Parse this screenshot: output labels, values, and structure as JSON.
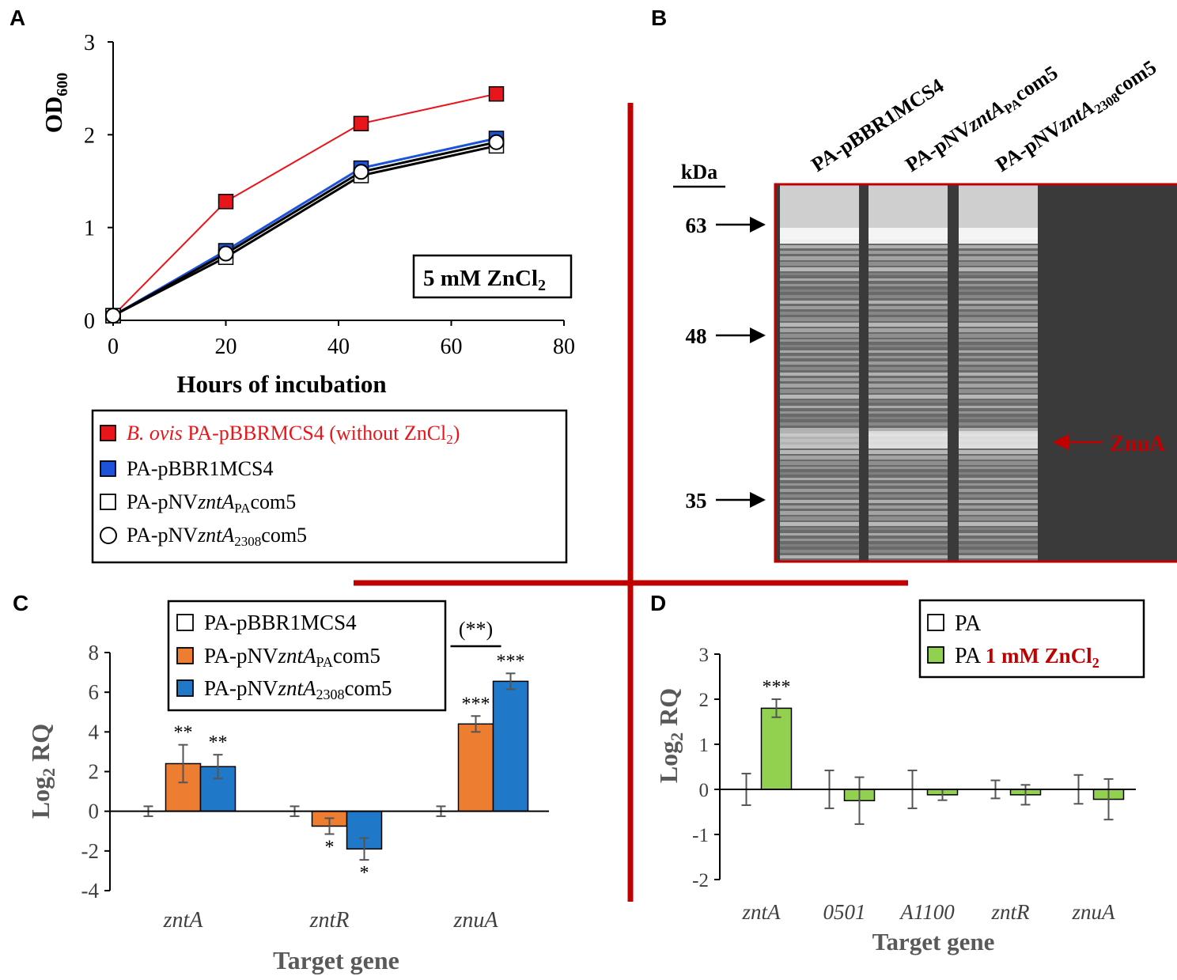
{
  "panels": {
    "a": "A",
    "b": "B",
    "c": "C",
    "d": "D"
  },
  "colors": {
    "red_series": "#e8161b",
    "blue_series": "#1c53d8",
    "orange_bar": "#ed7d31",
    "blue_bar": "#1f78c8",
    "green_bar": "#92d050",
    "divider": "#c00000",
    "error_bar": "#7f7f7f"
  },
  "chart_data": [
    {
      "id": "A",
      "type": "line",
      "xlabel": "Hours of incubation",
      "ylabel_main": "OD",
      "ylabel_sub": "600",
      "xlim": [
        0,
        80
      ],
      "ylim": [
        0,
        3
      ],
      "xticks": [
        "0",
        "20",
        "40",
        "60",
        "80"
      ],
      "yticks": [
        "0",
        "1",
        "2",
        "3"
      ],
      "condition_box": {
        "text": "5 mM ZnCl",
        "sub": "2"
      },
      "x": [
        0,
        20,
        44,
        68
      ],
      "series": [
        {
          "name": "B. ovis PA-pBBRMCS4 (without ZnCl2)",
          "marker": "square",
          "values": [
            0.05,
            1.28,
            2.12,
            2.44
          ]
        },
        {
          "name": "PA-pBBR1MCS4",
          "marker": "square",
          "values": [
            0.05,
            0.75,
            1.64,
            1.96
          ]
        },
        {
          "name": "PA-pNVzntA_PAcom5",
          "marker": "square-open",
          "values": [
            0.05,
            0.68,
            1.56,
            1.88
          ]
        },
        {
          "name": "PA-pNVzntA2308com5",
          "marker": "circle-open",
          "values": [
            0.05,
            0.72,
            1.6,
            1.92
          ]
        }
      ],
      "legend": [
        {
          "italic": "B. ovis",
          "text": " PA-pBBRMCS4 (without ZnCl",
          "sub": "2",
          "tail": ")"
        },
        {
          "pre": "PA-pBBR1MCS4",
          "ital": "",
          "sub": "",
          "post": ""
        },
        {
          "pre": "PA-pNV",
          "ital": "zntA",
          "sub": "PA",
          "post": "com5"
        },
        {
          "pre": "PA-pNV",
          "ital": "zntA",
          "sub": "2308",
          "post": "com5"
        }
      ]
    },
    {
      "id": "B",
      "type": "gel",
      "unit_label": "kDa",
      "lanes": [
        {
          "pre": "PA-pBBR1MCS4",
          "ital": "",
          "sub": "",
          "post": ""
        },
        {
          "pre": "PA-pNV",
          "ital": "zntA",
          "sub": "PA",
          "post": "com5"
        },
        {
          "pre": "PA-pNV",
          "ital": "zntA",
          "sub": "2308",
          "post": "com5"
        }
      ],
      "markers": [
        "63",
        "48",
        "35"
      ],
      "band_label": "ZnuA"
    },
    {
      "id": "C",
      "type": "bar",
      "xlabel": "Target gene",
      "ylabel_main": "Log",
      "ylabel_sub": "2",
      "ylabel_tail": " RQ",
      "ylim": [
        -4,
        8
      ],
      "yticks": [
        "-4",
        "-2",
        "0",
        "2",
        "4",
        "6",
        "8"
      ],
      "categories": [
        "zntA",
        "zntR",
        "znuA"
      ],
      "series": [
        {
          "name": "PA-pBBR1MCS4",
          "values": [
            0,
            0,
            0
          ],
          "errors": [
            0.25,
            0.25,
            0.25
          ],
          "sig": [
            "",
            "",
            ""
          ]
        },
        {
          "name": "PA-pNVzntA_PAcom5",
          "values": [
            2.4,
            -0.75,
            4.4
          ],
          "errors": [
            0.95,
            0.4,
            0.4
          ],
          "sig": [
            "**",
            "*",
            "***"
          ]
        },
        {
          "name": "PA-pNVzntA2308com5",
          "values": [
            2.25,
            -1.9,
            6.55
          ],
          "errors": [
            0.6,
            0.55,
            0.4
          ],
          "sig": [
            "**",
            "*",
            "***"
          ]
        }
      ],
      "bracket_label": "(**)",
      "legend": [
        {
          "pre": "PA-pBBR1MCS4",
          "ital": "",
          "sub": "",
          "post": ""
        },
        {
          "pre": "PA-pNV",
          "ital": "zntA",
          "sub": "PA",
          "post": "com5"
        },
        {
          "pre": "PA-pNV",
          "ital": "zntA",
          "sub": "2308",
          "post": "com5"
        }
      ]
    },
    {
      "id": "D",
      "type": "bar",
      "xlabel": "Target gene",
      "ylabel_main": "Log",
      "ylabel_sub": "2",
      "ylabel_tail": " RQ",
      "ylim": [
        -2,
        3
      ],
      "yticks": [
        "-2",
        "-1",
        "0",
        "1",
        "2",
        "3"
      ],
      "categories": [
        "zntA",
        "0501",
        "A1100",
        "zntR",
        "znuA"
      ],
      "series": [
        {
          "name": "PA",
          "values": [
            0,
            0,
            0,
            0,
            0
          ],
          "errors": [
            0.35,
            0.42,
            0.42,
            0.2,
            0.32
          ],
          "sig": [
            "",
            "",
            "",
            "",
            ""
          ]
        },
        {
          "name": "PA 1 mM ZnCl2",
          "values": [
            1.8,
            -0.25,
            -0.12,
            -0.12,
            -0.22
          ],
          "errors": [
            0.2,
            0.52,
            0.12,
            0.22,
            0.45
          ],
          "sig": [
            "***",
            "",
            "",
            "",
            ""
          ]
        }
      ],
      "legend_pa": "PA",
      "legend_zn_pre": "PA ",
      "legend_zn_red": "1 mM ZnCl",
      "legend_zn_sub": "2"
    }
  ]
}
